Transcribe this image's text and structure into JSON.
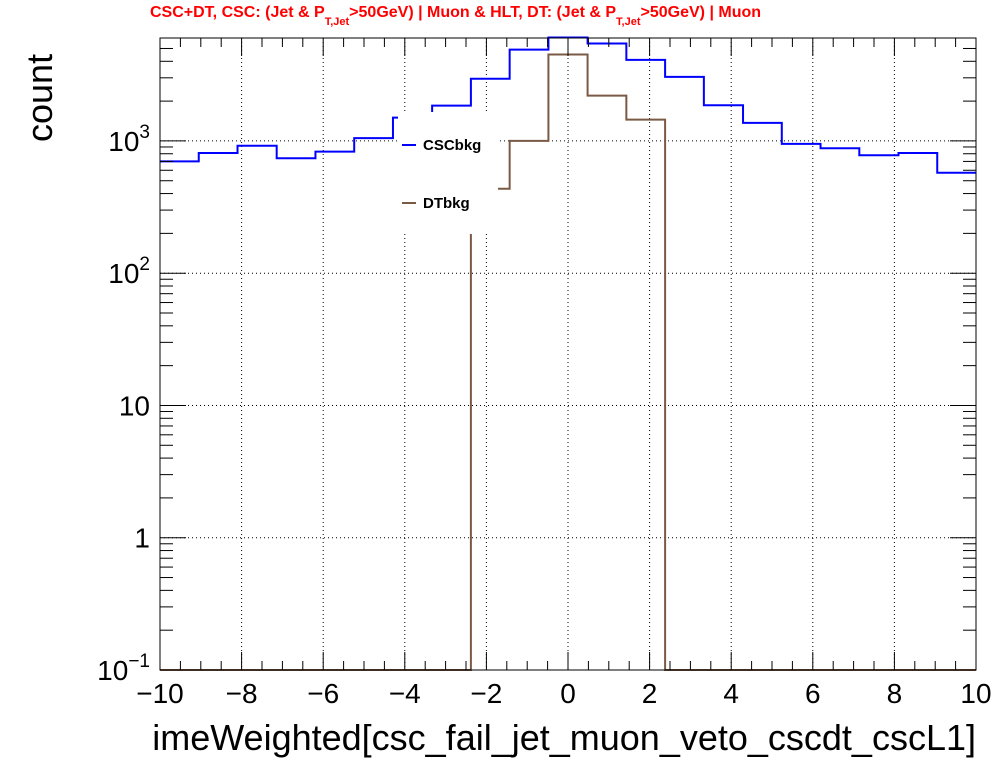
{
  "chart_data": {
    "type": "step-histogram",
    "title": {
      "part1": "CSC+DT, CSC: (Jet & P",
      "sub1": "T,Jet",
      "part2": ">50GeV) | Muon & HLT, DT: (Jet & P",
      "sub2": "T,Jet",
      "part3": ">50GeV) | Muon"
    },
    "xlabel": "imeWeighted[csc_fail_jet_muon_veto_cscdt_cscL1]",
    "ylabel": "count",
    "xlim": [
      -10,
      10
    ],
    "ylim": [
      0.1,
      6000
    ],
    "y_scale": "log",
    "grid": true,
    "x_ticks": [
      {
        "v": -10,
        "label": "−10"
      },
      {
        "v": -8,
        "label": "−8"
      },
      {
        "v": -6,
        "label": "−6"
      },
      {
        "v": -4,
        "label": "−4"
      },
      {
        "v": -2,
        "label": "−2"
      },
      {
        "v": 0,
        "label": "0"
      },
      {
        "v": 2,
        "label": "2"
      },
      {
        "v": 4,
        "label": "4"
      },
      {
        "v": 6,
        "label": "6"
      },
      {
        "v": 8,
        "label": "8"
      },
      {
        "v": 10,
        "label": "10"
      }
    ],
    "y_ticks": [
      {
        "v": 0.1,
        "base": "10",
        "exp": "−1"
      },
      {
        "v": 1,
        "base": "1",
        "exp": ""
      },
      {
        "v": 10,
        "base": "10",
        "exp": ""
      },
      {
        "v": 100,
        "base": "10",
        "exp": "2"
      },
      {
        "v": 1000,
        "base": "10",
        "exp": "3"
      }
    ],
    "bin_edges": [
      -10,
      -9.05,
      -8.1,
      -7.14,
      -6.19,
      -5.24,
      -4.29,
      -3.33,
      -2.38,
      -1.43,
      -0.48,
      0.48,
      1.43,
      2.38,
      3.33,
      4.29,
      5.24,
      6.19,
      7.14,
      8.1,
      9.05,
      10
    ],
    "series": [
      {
        "name": "CSCbkg",
        "color": "#0000ff",
        "values": [
          700,
          810,
          920,
          740,
          830,
          1050,
          1500,
          1850,
          2950,
          4900,
          6050,
          5450,
          4100,
          3050,
          1860,
          1370,
          950,
          880,
          780,
          810,
          575
        ]
      },
      {
        "name": "DTbkg",
        "color": "#7a5a45",
        "values": [
          0,
          0,
          0,
          0,
          0,
          0,
          0,
          0,
          435,
          1000,
          4500,
          2200,
          1450,
          0,
          0,
          0,
          0,
          0,
          0,
          0,
          0
        ]
      }
    ],
    "legend_position": "upper-left-center"
  }
}
